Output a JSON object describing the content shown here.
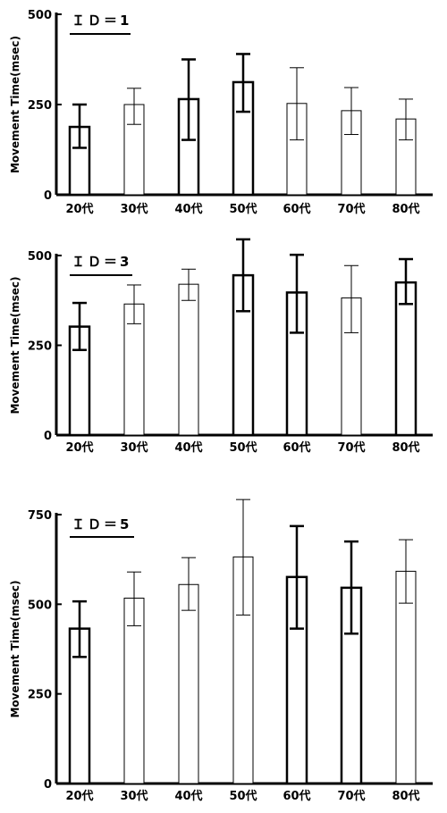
{
  "chart_data": [
    {
      "type": "bar",
      "title": "ＩＤ＝1",
      "ylabel": "Movement Time(msec)",
      "categories": [
        "20代",
        "30代",
        "40代",
        "50代",
        "60代",
        "70代",
        "80代"
      ],
      "ylim": [
        0,
        500
      ],
      "yticks": [
        0,
        250,
        500
      ],
      "series": [
        {
          "values": [
            188,
            250,
            265,
            312,
            253,
            233,
            210
          ],
          "error_low": [
            130,
            195,
            152,
            230,
            152,
            167,
            152
          ],
          "error_high": [
            250,
            295,
            375,
            390,
            352,
            297,
            265
          ]
        }
      ]
    },
    {
      "type": "bar",
      "title": "ＩＤ＝3",
      "ylabel": "Movement Time(msec)",
      "categories": [
        "20代",
        "30代",
        "40代",
        "50代",
        "60代",
        "70代",
        "80代"
      ],
      "ylim": [
        0,
        500
      ],
      "yticks": [
        0,
        250,
        500
      ],
      "series": [
        {
          "values": [
            302,
            365,
            420,
            445,
            397,
            382,
            425
          ],
          "error_low": [
            237,
            310,
            375,
            345,
            285,
            285,
            365
          ],
          "error_high": [
            368,
            418,
            462,
            545,
            502,
            472,
            490
          ]
        }
      ]
    },
    {
      "type": "bar",
      "title": "ＩＤ＝5",
      "ylabel": "Movement Time(msec)",
      "categories": [
        "20代",
        "30代",
        "40代",
        "50代",
        "60代",
        "70代",
        "80代"
      ],
      "ylim": [
        0,
        750
      ],
      "yticks": [
        0,
        250,
        500,
        750
      ],
      "series": [
        {
          "values": [
            432,
            517,
            555,
            632,
            576,
            546,
            592
          ],
          "error_low": [
            353,
            440,
            483,
            470,
            432,
            418,
            503
          ],
          "error_high": [
            508,
            590,
            630,
            792,
            718,
            675,
            680
          ]
        }
      ]
    }
  ]
}
